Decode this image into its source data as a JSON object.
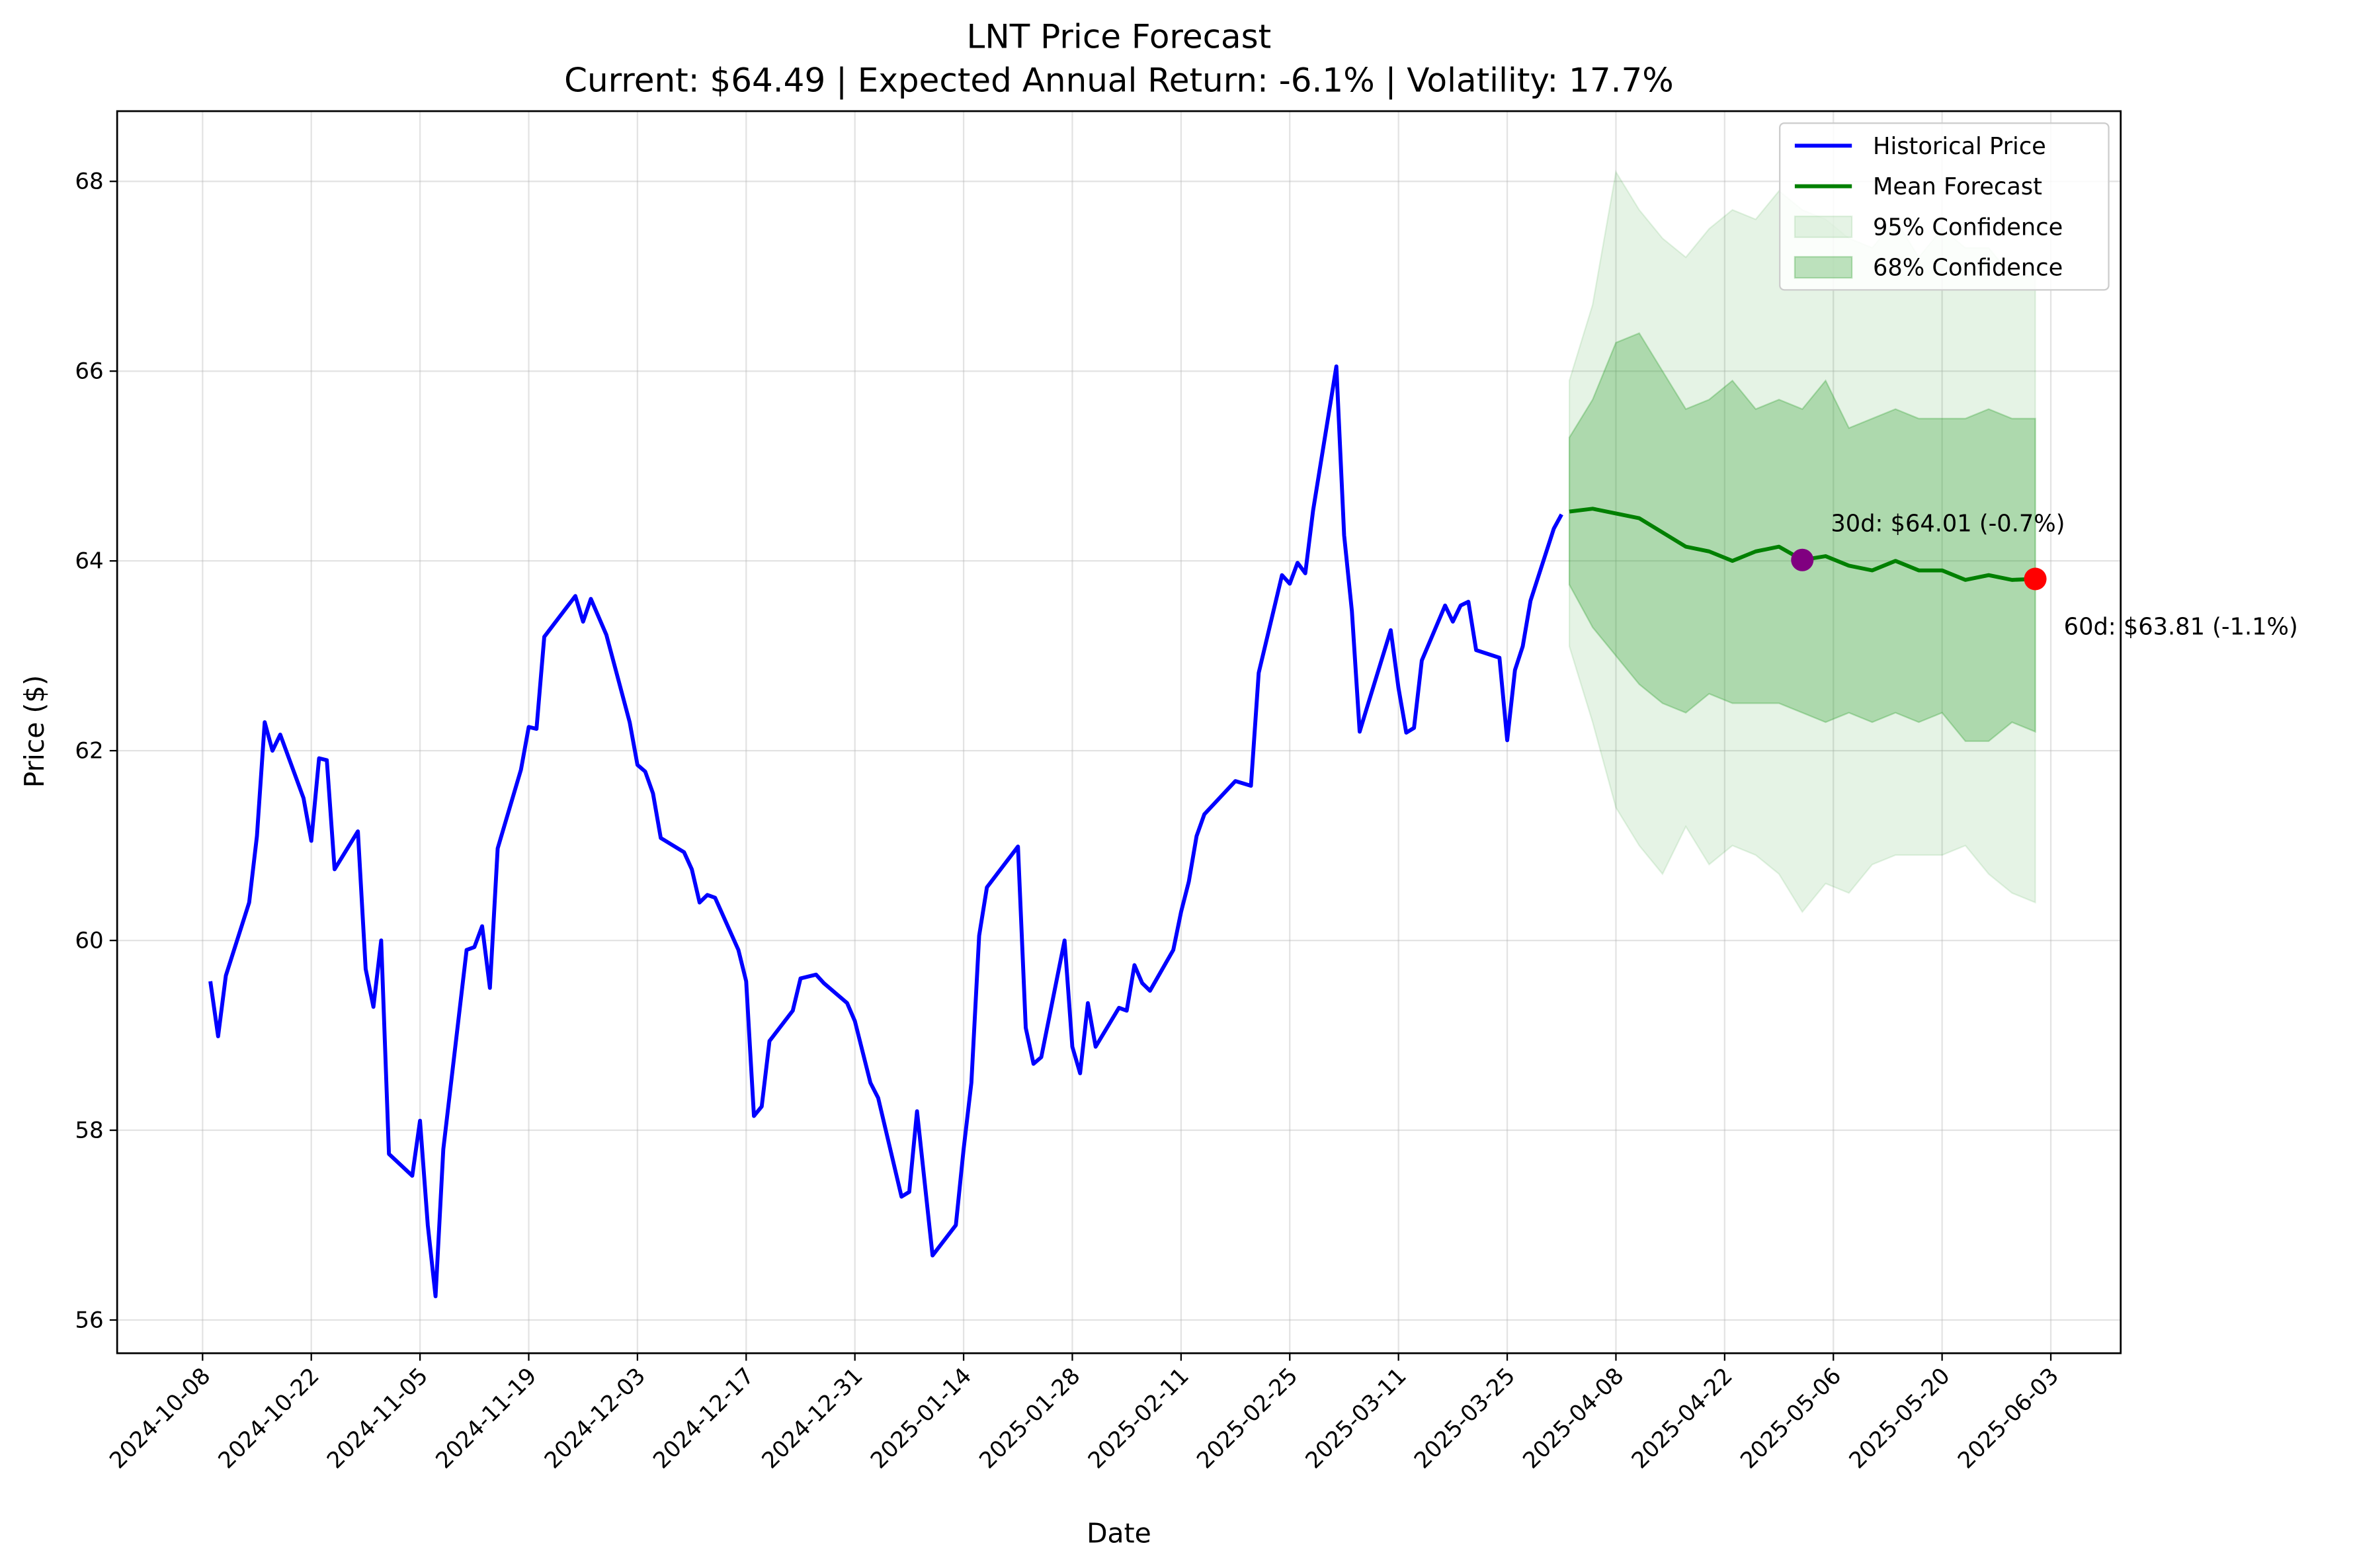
{
  "chart_data": {
    "type": "line",
    "title": "LNT Price Forecast",
    "subtitle": "Current: $64.49 | Expected Annual Return: -6.1% | Volatility: 17.7%",
    "x_label": "Date",
    "y_label": "Price ($)",
    "xlim": [
      "2024-09-27",
      "2025-06-12"
    ],
    "xticks": [
      "2024-10-08",
      "2024-10-22",
      "2024-11-05",
      "2024-11-19",
      "2024-12-03",
      "2024-12-17",
      "2024-12-31",
      "2025-01-14",
      "2025-01-28",
      "2025-02-11",
      "2025-02-25",
      "2025-03-11",
      "2025-03-25",
      "2025-04-08",
      "2025-04-22",
      "2025-05-06",
      "2025-05-20",
      "2025-06-03"
    ],
    "ylim": [
      55.65,
      68.74
    ],
    "yticks": [
      56,
      58,
      60,
      62,
      64,
      66,
      68
    ],
    "grid": true,
    "legend": "upper right",
    "bands": [
      {
        "name": "95% Confidence",
        "color": "#2ca02c",
        "opacity": 0.12,
        "x": [
          "2025-04-02",
          "2025-04-05",
          "2025-04-08",
          "2025-04-11",
          "2025-04-14",
          "2025-04-17",
          "2025-04-20",
          "2025-04-23",
          "2025-04-26",
          "2025-04-29",
          "2025-05-02",
          "2025-05-05",
          "2025-05-08",
          "2025-05-11",
          "2025-05-14",
          "2025-05-17",
          "2025-05-20",
          "2025-05-23",
          "2025-05-26",
          "2025-05-29",
          "2025-06-01"
        ],
        "lower": [
          63.1,
          62.3,
          61.4,
          61.0,
          60.7,
          61.2,
          60.8,
          61.0,
          60.9,
          60.7,
          60.3,
          60.6,
          60.5,
          60.8,
          60.9,
          60.9,
          60.9,
          61.0,
          60.7,
          60.5,
          60.4
        ],
        "upper": [
          65.9,
          66.7,
          68.1,
          67.7,
          67.4,
          67.2,
          67.5,
          67.7,
          67.6,
          67.9,
          67.7,
          67.6,
          67.4,
          67.3,
          67.6,
          67.2,
          67.5,
          67.3,
          67.3,
          67.0,
          67.0
        ]
      },
      {
        "name": "68% Confidence",
        "color": "#2ca02c",
        "opacity": 0.3,
        "x": [
          "2025-04-02",
          "2025-04-05",
          "2025-04-08",
          "2025-04-11",
          "2025-04-14",
          "2025-04-17",
          "2025-04-20",
          "2025-04-23",
          "2025-04-26",
          "2025-04-29",
          "2025-05-02",
          "2025-05-05",
          "2025-05-08",
          "2025-05-11",
          "2025-05-14",
          "2025-05-17",
          "2025-05-20",
          "2025-05-23",
          "2025-05-26",
          "2025-05-29",
          "2025-06-01"
        ],
        "lower": [
          63.75,
          63.3,
          63.0,
          62.7,
          62.5,
          62.4,
          62.6,
          62.5,
          62.5,
          62.5,
          62.4,
          62.3,
          62.4,
          62.3,
          62.4,
          62.3,
          62.4,
          62.1,
          62.1,
          62.3,
          62.2
        ],
        "upper": [
          65.3,
          65.7,
          66.3,
          66.4,
          66.0,
          65.6,
          65.7,
          65.9,
          65.6,
          65.7,
          65.6,
          65.9,
          65.4,
          65.5,
          65.6,
          65.5,
          65.5,
          65.5,
          65.6,
          65.5,
          65.5
        ]
      }
    ],
    "series": [
      {
        "name": "Historical Price",
        "color": "#0000ff",
        "x": [
          "2024-10-09",
          "2024-10-10",
          "2024-10-11",
          "2024-10-14",
          "2024-10-15",
          "2024-10-16",
          "2024-10-17",
          "2024-10-18",
          "2024-10-21",
          "2024-10-22",
          "2024-10-23",
          "2024-10-24",
          "2024-10-25",
          "2024-10-28",
          "2024-10-29",
          "2024-10-30",
          "2024-10-31",
          "2024-11-01",
          "2024-11-04",
          "2024-11-05",
          "2024-11-06",
          "2024-11-07",
          "2024-11-08",
          "2024-11-11",
          "2024-11-12",
          "2024-11-13",
          "2024-11-14",
          "2024-11-15",
          "2024-11-18",
          "2024-11-19",
          "2024-11-20",
          "2024-11-21",
          "2024-11-25",
          "2024-11-26",
          "2024-11-27",
          "2024-11-29",
          "2024-12-02",
          "2024-12-03",
          "2024-12-04",
          "2024-12-05",
          "2024-12-06",
          "2024-12-09",
          "2024-12-10",
          "2024-12-11",
          "2024-12-12",
          "2024-12-13",
          "2024-12-16",
          "2024-12-17",
          "2024-12-18",
          "2024-12-19",
          "2024-12-20",
          "2024-12-23",
          "2024-12-24",
          "2024-12-26",
          "2024-12-27",
          "2024-12-30",
          "2024-12-31",
          "2025-01-02",
          "2025-01-03",
          "2025-01-06",
          "2025-01-07",
          "2025-01-08",
          "2025-01-10",
          "2025-01-13",
          "2025-01-14",
          "2025-01-15",
          "2025-01-16",
          "2025-01-17",
          "2025-01-21",
          "2025-01-22",
          "2025-01-23",
          "2025-01-24",
          "2025-01-27",
          "2025-01-28",
          "2025-01-29",
          "2025-01-30",
          "2025-01-31",
          "2025-02-03",
          "2025-02-04",
          "2025-02-05",
          "2025-02-06",
          "2025-02-07",
          "2025-02-10",
          "2025-02-11",
          "2025-02-12",
          "2025-02-13",
          "2025-02-14",
          "2025-02-18",
          "2025-02-20",
          "2025-02-21",
          "2025-02-24",
          "2025-02-25",
          "2025-02-26",
          "2025-02-27",
          "2025-02-28",
          "2025-03-03",
          "2025-03-04",
          "2025-03-05",
          "2025-03-06",
          "2025-03-07",
          "2025-03-10",
          "2025-03-11",
          "2025-03-12",
          "2025-03-13",
          "2025-03-14",
          "2025-03-17",
          "2025-03-18",
          "2025-03-19",
          "2025-03-20",
          "2025-03-21",
          "2025-03-24",
          "2025-03-25",
          "2025-03-26",
          "2025-03-27",
          "2025-03-28",
          "2025-03-31",
          "2025-04-01"
        ],
        "values": [
          59.57,
          58.99,
          59.63,
          60.4,
          61.1,
          62.3,
          62.0,
          62.17,
          61.5,
          61.05,
          61.92,
          61.9,
          60.75,
          61.15,
          59.7,
          59.3,
          60.0,
          57.75,
          57.52,
          58.1,
          57.0,
          56.25,
          57.8,
          59.9,
          59.93,
          60.15,
          59.5,
          60.97,
          61.8,
          62.25,
          62.23,
          63.2,
          63.63,
          63.36,
          63.6,
          63.22,
          62.3,
          61.85,
          61.78,
          61.55,
          61.08,
          60.93,
          60.75,
          60.4,
          60.48,
          60.45,
          59.9,
          59.57,
          58.15,
          58.25,
          58.94,
          59.26,
          59.6,
          59.64,
          59.55,
          59.34,
          59.15,
          58.5,
          58.34,
          57.3,
          57.35,
          58.2,
          56.68,
          57.0,
          57.8,
          58.5,
          60.05,
          60.56,
          60.99,
          59.08,
          58.7,
          58.77,
          60.0,
          58.88,
          58.6,
          59.34,
          58.88,
          59.29,
          59.26,
          59.74,
          59.55,
          59.47,
          59.9,
          60.3,
          60.62,
          61.1,
          61.33,
          61.68,
          61.63,
          62.82,
          63.85,
          63.76,
          63.98,
          63.87,
          64.53,
          66.05,
          64.27,
          63.47,
          62.2,
          62.47,
          63.27,
          62.66,
          62.19,
          62.24,
          62.95,
          63.53,
          63.36,
          63.53,
          63.57,
          63.06,
          62.98,
          62.11,
          62.85,
          63.1,
          63.58,
          64.34,
          64.49
        ]
      },
      {
        "name": "Mean Forecast",
        "color": "#008000",
        "x": [
          "2025-04-02",
          "2025-04-05",
          "2025-04-08",
          "2025-04-11",
          "2025-04-14",
          "2025-04-17",
          "2025-04-20",
          "2025-04-23",
          "2025-04-26",
          "2025-04-29",
          "2025-05-02",
          "2025-05-05",
          "2025-05-08",
          "2025-05-11",
          "2025-05-14",
          "2025-05-17",
          "2025-05-20",
          "2025-05-23",
          "2025-05-26",
          "2025-05-29",
          "2025-06-01"
        ],
        "values": [
          64.52,
          64.55,
          64.5,
          64.45,
          64.3,
          64.15,
          64.1,
          64.0,
          64.1,
          64.15,
          64.01,
          64.05,
          63.95,
          63.9,
          64.0,
          63.9,
          63.9,
          63.8,
          63.85,
          63.8,
          63.81
        ]
      }
    ],
    "forecast_points": [
      {
        "x": "2025-05-02",
        "value": 64.01,
        "label": "30d: $64.01 (-0.7%)",
        "color": "#800080"
      },
      {
        "x": "2025-06-01",
        "value": 63.81,
        "label": "60d: $63.81 (-1.1%)",
        "color": "#ff0000"
      }
    ]
  }
}
